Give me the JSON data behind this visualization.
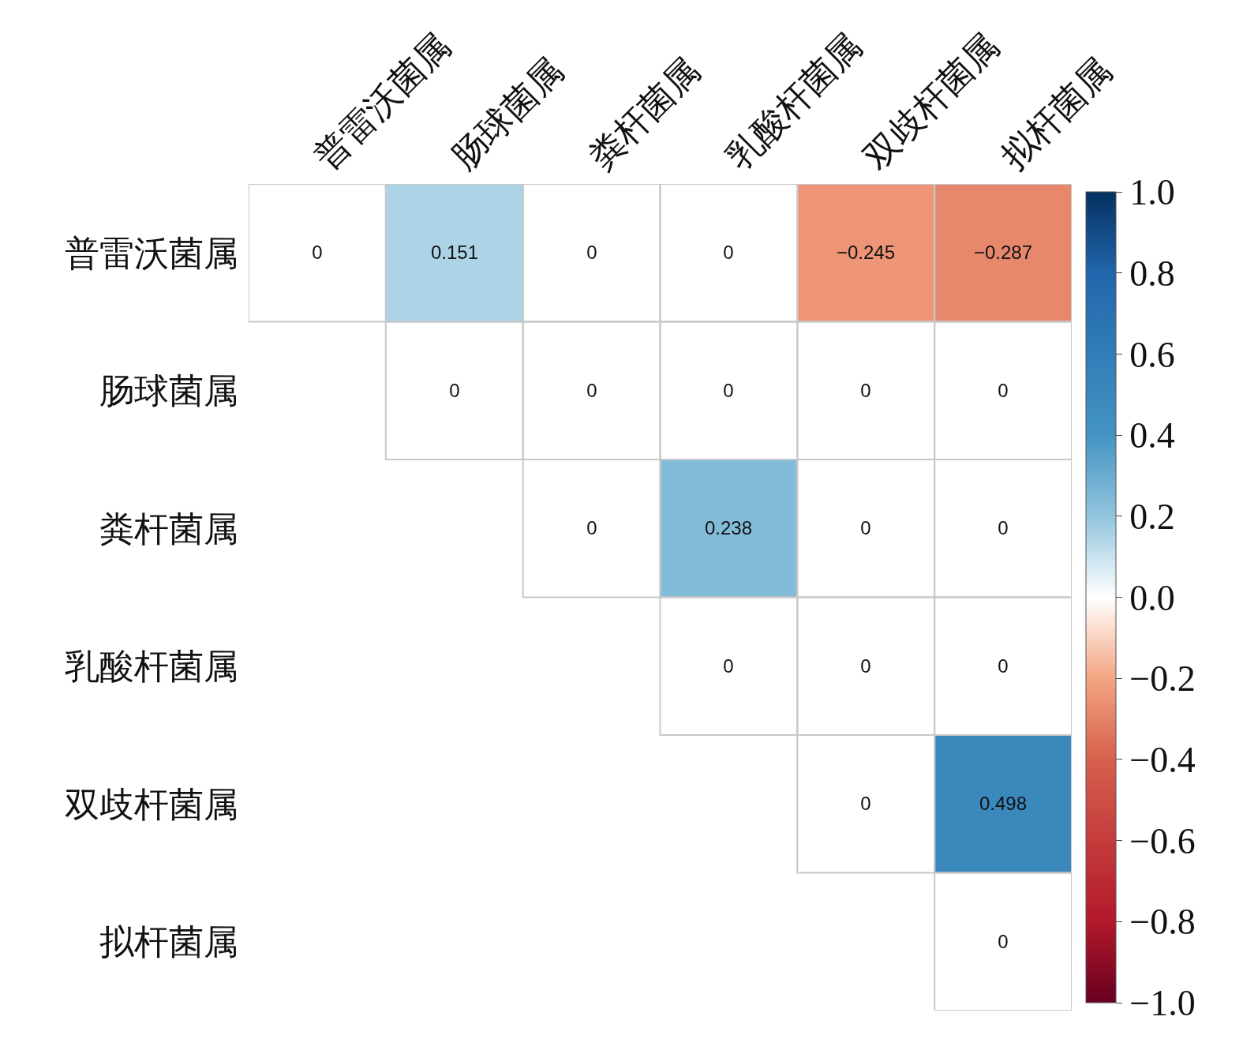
{
  "chart_data": {
    "type": "heatmap",
    "categories": [
      "普雷沃菌属",
      "肠球菌属",
      "粪杆菌属",
      "乳酸杆菌属",
      "双歧杆菌属",
      "拟杆菌属"
    ],
    "y_categories": [
      "普雷沃菌属",
      "肠球菌属",
      "粪杆菌属",
      "乳酸杆菌属",
      "双歧杆菌属",
      "拟杆菌属"
    ],
    "cells": [
      [
        0,
        0.151,
        0,
        0,
        -0.245,
        -0.287
      ],
      [
        null,
        0,
        0,
        0,
        0,
        0
      ],
      [
        null,
        null,
        0,
        0.238,
        0,
        0
      ],
      [
        null,
        null,
        null,
        0,
        0,
        0
      ],
      [
        null,
        null,
        null,
        null,
        0,
        0.498
      ],
      [
        null,
        null,
        null,
        null,
        null,
        0
      ]
    ],
    "data_labels": true,
    "clim": [
      -1,
      1
    ],
    "cticks": [
      {
        "value": 1,
        "label": "1.0"
      },
      0.8,
      0.6,
      0.4,
      0.2,
      {
        "value": 0,
        "label": "0.0"
      },
      {
        "value": -0.2,
        "label": "−0.2"
      },
      {
        "value": -0.4,
        "label": "−0.4"
      },
      {
        "value": -0.6,
        "label": "−0.6"
      },
      {
        "value": -0.8,
        "label": "−0.8"
      },
      {
        "value": -1,
        "label": "−1.0"
      }
    ]
  }
}
